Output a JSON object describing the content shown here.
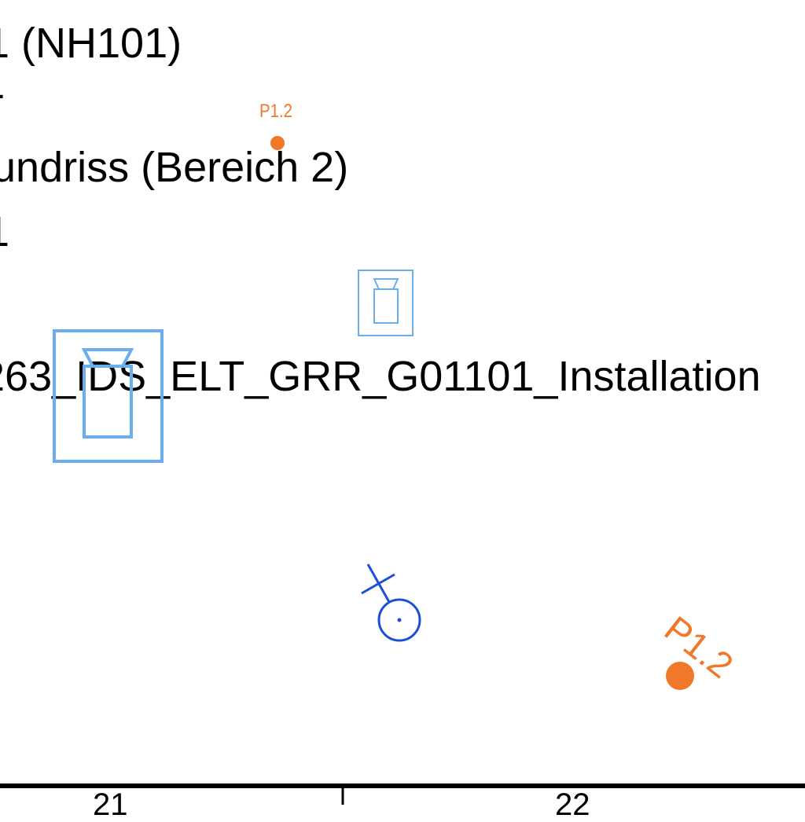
{
  "drawing": {
    "lines": [
      "1 (NH101)",
      "-",
      "undriss (Bereich 2)",
      "1",
      "263_IDS_ELT_GRR_G01101_Installation"
    ],
    "markers": [
      {
        "label": "P1.2",
        "color": "#f07828"
      },
      {
        "label": "P1.2",
        "color": "#f07828"
      }
    ],
    "symbol_colors": {
      "fixture": "#6aaef0",
      "outlet": "#1a4fd6"
    },
    "ruler": {
      "labels": [
        "21",
        "22"
      ]
    }
  }
}
